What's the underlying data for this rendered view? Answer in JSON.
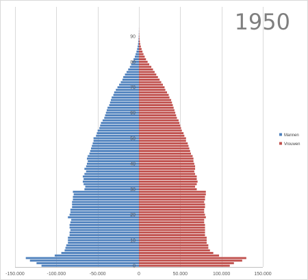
{
  "chart_data": {
    "type": "bar",
    "orientation": "horizontal",
    "title": "1950",
    "xlim": [
      -150000,
      150000
    ],
    "x_ticks": [
      -150000,
      -100000,
      -50000,
      0,
      50000,
      100000,
      150000
    ],
    "x_tick_labels": [
      "-150.000",
      "-100.000",
      "-50.000",
      "0",
      "50.000",
      "100.000",
      "150.000"
    ],
    "y_ticks": [
      0,
      10,
      20,
      30,
      40,
      50,
      60,
      70,
      80,
      90
    ],
    "y_tick_labels": [
      "0",
      "10",
      "20",
      "30",
      "40",
      "50",
      "60",
      "70",
      "80",
      "90"
    ],
    "grid": "vertical",
    "legend_position": "right",
    "categories": [
      0,
      1,
      2,
      3,
      4,
      5,
      6,
      7,
      8,
      9,
      10,
      11,
      12,
      13,
      14,
      15,
      16,
      17,
      18,
      19,
      20,
      21,
      22,
      23,
      24,
      25,
      26,
      27,
      28,
      29,
      30,
      31,
      32,
      33,
      34,
      35,
      36,
      37,
      38,
      39,
      40,
      41,
      42,
      43,
      44,
      45,
      46,
      47,
      48,
      49,
      50,
      51,
      52,
      53,
      54,
      55,
      56,
      57,
      58,
      59,
      60,
      61,
      62,
      63,
      64,
      65,
      66,
      67,
      68,
      69,
      70,
      71,
      72,
      73,
      74,
      75,
      76,
      77,
      78,
      79,
      80,
      81,
      82,
      83,
      84,
      85,
      86,
      87,
      88,
      89,
      90,
      91,
      92,
      93
    ],
    "series": [
      {
        "name": "Mannen",
        "color": "#4f81bd",
        "values": [
          -118000,
          -124000,
          -132000,
          -137000,
          -102000,
          -94000,
          -90000,
          -89000,
          -88000,
          -86000,
          -86000,
          -86000,
          -84000,
          -84000,
          -83000,
          -84000,
          -84000,
          -83000,
          -82000,
          -86000,
          -84000,
          -83000,
          -83000,
          -81000,
          -81000,
          -81000,
          -80000,
          -80000,
          -79000,
          -80000,
          -66000,
          -65000,
          -67000,
          -68000,
          -67000,
          -68000,
          -66000,
          -64000,
          -66000,
          -64000,
          -63000,
          -62000,
          -63000,
          -62000,
          -60000,
          -59000,
          -58000,
          -57000,
          -56000,
          -55000,
          -55000,
          -52000,
          -51000,
          -50000,
          -48000,
          -47000,
          -46000,
          -44000,
          -42000,
          -41000,
          -40000,
          -39000,
          -38000,
          -36000,
          -35000,
          -34000,
          -33000,
          -31000,
          -30000,
          -28000,
          -26000,
          -24000,
          -22000,
          -20000,
          -19000,
          -17000,
          -15000,
          -13000,
          -11000,
          -9500,
          -8000,
          -6500,
          -5000,
          -4000,
          -3000,
          -2200,
          -1600,
          -1100,
          -700,
          -450,
          -280,
          -160,
          -90,
          -40
        ]
      },
      {
        "name": "Vrouwen",
        "color": "#c0504d",
        "values": [
          110000,
          115000,
          125000,
          130000,
          97000,
          90000,
          86000,
          84000,
          84000,
          82000,
          82000,
          82000,
          80000,
          80000,
          80000,
          80000,
          80000,
          79000,
          79000,
          81000,
          80000,
          79000,
          79000,
          80000,
          80000,
          79000,
          80000,
          80000,
          81000,
          81000,
          70000,
          68000,
          70000,
          71000,
          70000,
          70000,
          68000,
          67000,
          68000,
          68000,
          67000,
          66000,
          66000,
          65000,
          63000,
          62000,
          61000,
          60000,
          59000,
          57000,
          57000,
          55000,
          54000,
          52000,
          51000,
          50000,
          49000,
          48000,
          46000,
          45000,
          44000,
          43000,
          42000,
          41000,
          40000,
          39000,
          37000,
          36000,
          34000,
          32000,
          31000,
          29000,
          27000,
          25000,
          23000,
          21000,
          19000,
          17000,
          15000,
          12500,
          10500,
          8500,
          7000,
          5500,
          4300,
          3200,
          2300,
          1600,
          1100,
          700,
          450,
          280,
          150,
          70
        ]
      }
    ]
  }
}
